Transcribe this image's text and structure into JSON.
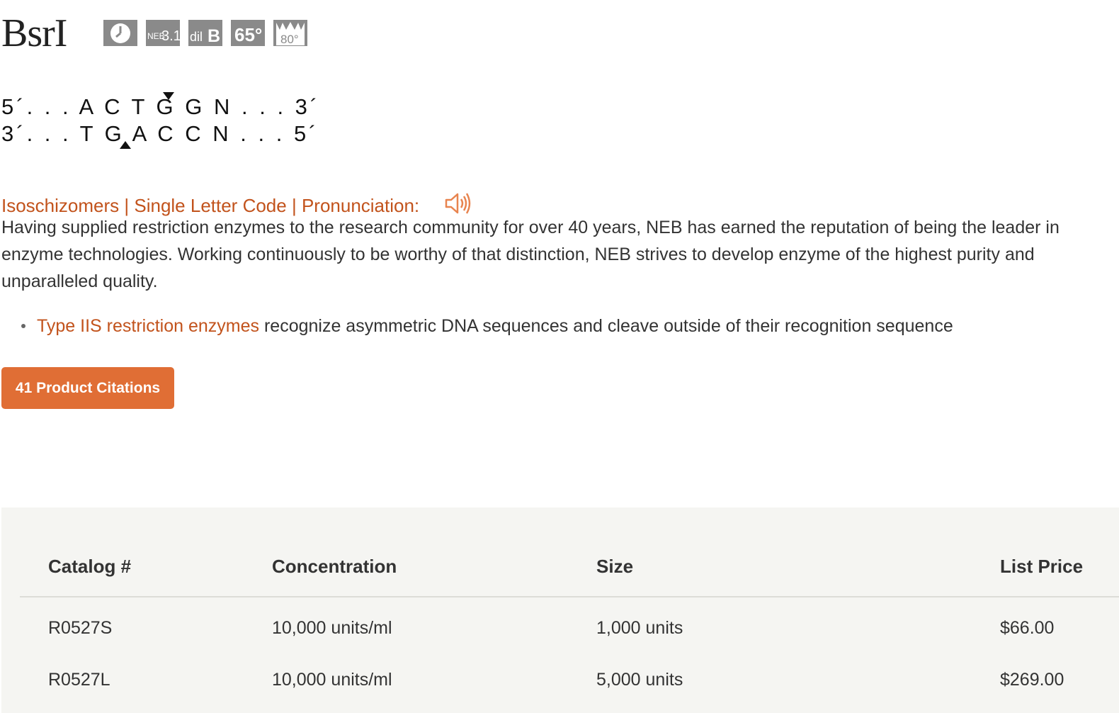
{
  "product": {
    "title": "BsrI",
    "badges": [
      {
        "icon": "time-saver-clock-icon"
      },
      {
        "icon": "neb-buffer-3-1-icon",
        "prefix": "NEB",
        "text": "3.1"
      },
      {
        "icon": "diluent-b-icon",
        "prefix": "dil",
        "text": "B"
      },
      {
        "icon": "incubation-temperature-icon",
        "text": "65°"
      },
      {
        "icon": "heat-inactivation-icon",
        "text": "80°"
      }
    ]
  },
  "sequence": {
    "top": "5´. . . A C T G G N . . . 3´",
    "bottom": "3´. . . T G A C C N . . . 5´"
  },
  "links": {
    "isoschizomers": "Isoschizomers",
    "separator": " | ",
    "single_letter_code": "Single Letter Code",
    "pronunciation": "Pronunciation:",
    "speaker_icon": "speaker-icon"
  },
  "description": "Having supplied restriction enzymes to the research community for over 40 years, NEB has earned the reputation of being the leader in enzyme technologies.  Working continuously to be worthy of that distinction, NEB strives to develop enzyme of the highest purity and unparalleled quality.",
  "bullet": {
    "link": "Type IIS restriction enzymes",
    "text": " recognize asymmetric DNA sequences and cleave outside of their recognition sequence"
  },
  "citations_button": "41 Product Citations",
  "table": {
    "headers": [
      "Catalog #",
      "Concentration",
      "Size",
      "List Price"
    ],
    "rows": [
      [
        "R0527S",
        "10,000 units/ml",
        "1,000 units",
        "$66.00"
      ],
      [
        "R0527L",
        "10,000 units/ml",
        "5,000 units",
        "$269.00"
      ]
    ]
  },
  "colors": {
    "link": "#c2531c",
    "button": "#e06e35",
    "badge": "#8a8a8a",
    "table_bg": "#f5f5f2"
  }
}
